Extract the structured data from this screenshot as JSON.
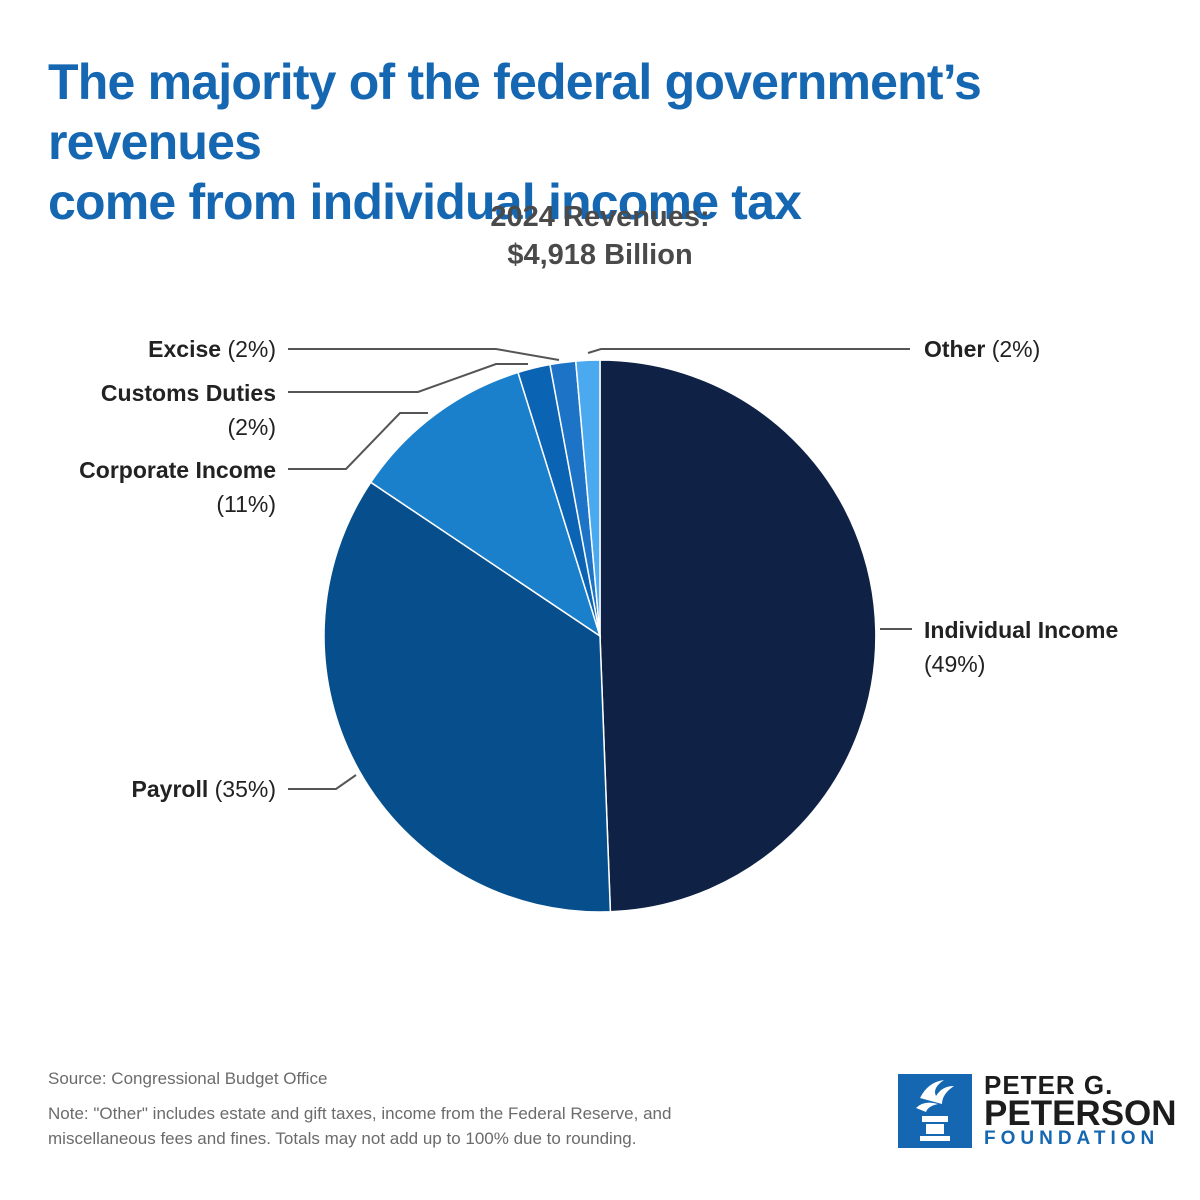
{
  "title_lines": [
    "The majority of the federal government’s revenues",
    "come from individual income tax"
  ],
  "subtitle_lines": [
    "2024 Revenues:",
    "$4,918 Billion"
  ],
  "chart_data": {
    "type": "pie",
    "title": "2024 Revenues: $4,918 Billion",
    "start": "12 o'clock, clockwise",
    "slices": [
      {
        "name": "Individual Income",
        "pct_label": "(49%)",
        "value": 49.4,
        "color": "#0f2145"
      },
      {
        "name": "Payroll",
        "pct_label": "(35%)",
        "value": 35.0,
        "color": "#064f8c"
      },
      {
        "name": "Corporate Income",
        "pct_label": "(11%)",
        "value": 10.8,
        "color": "#1a80cc"
      },
      {
        "name": "Customs Duties",
        "pct_label": "(2%)",
        "value": 1.9,
        "color": "#0b63b4"
      },
      {
        "name": "Excise",
        "pct_label": "(2%)",
        "value": 1.5,
        "color": "#1d74c6"
      },
      {
        "name": "Other",
        "pct_label": "(2%)",
        "value": 1.4,
        "color": "#4aa9ef"
      }
    ]
  },
  "footer": {
    "source": "Source: Congressional Budget Office",
    "note_lines": [
      "Note: \"Other\" includes estate and gift taxes, income from the Federal Reserve, and",
      "miscellaneous fees and fines. Totals may not add up to 100% due to rounding."
    ]
  },
  "logo": {
    "line1": "PETER G.",
    "line2": "PETERSON",
    "line3": "FOUNDATION",
    "icon": "torch-icon"
  }
}
